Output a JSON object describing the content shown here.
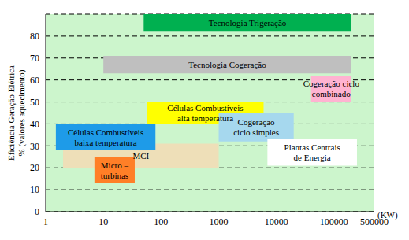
{
  "chart_data": {
    "type": "range",
    "x_label": "(KW)",
    "y_label": "Eficiência Geração Elétrica\n% (valores aquecimento)",
    "log": "x",
    "grid": true,
    "xlim": [
      1,
      500000
    ],
    "xticks": [
      1,
      10,
      100,
      1000,
      10000,
      100000,
      500000
    ],
    "ylim": [
      0,
      90
    ],
    "yticks": [
      0,
      10,
      20,
      30,
      40,
      50,
      60,
      70,
      80
    ],
    "series": [
      {
        "name": "Tecnologia Trigeração",
        "color": "#00b050",
        "x": [
          50,
          200000
        ],
        "y": [
          82,
          90
        ]
      },
      {
        "name": "Tecnologia Cogeração",
        "color": "#bfbfbf",
        "x": [
          10,
          200000
        ],
        "y": [
          63,
          71
        ]
      },
      {
        "name": "Cogeração ciclo\ncombinado",
        "color": "#ffb3d1",
        "x": [
          40000,
          200000
        ],
        "y": [
          50,
          62
        ]
      },
      {
        "name": "MCI",
        "color": "#eedfb8",
        "x": [
          2,
          1000
        ],
        "y": [
          20,
          31
        ]
      },
      {
        "name": "Células Combustíveis\nbaixa temperatura",
        "color": "#1e9be8",
        "x": [
          1.5,
          80
        ],
        "y": [
          28,
          40
        ]
      },
      {
        "name": "Células Combustíveis\nalta temperatura",
        "color": "#ffff00",
        "x": [
          57,
          6000
        ],
        "y": [
          40,
          50
        ]
      },
      {
        "name": "Cogeração\nciclo simples",
        "color": "#a6d8ee",
        "x": [
          1000,
          20000
        ],
        "y": [
          32,
          45
        ]
      },
      {
        "name": "Micro –\nturbinas",
        "color": "#ff7f27",
        "x": [
          7,
          35
        ],
        "y": [
          13,
          25
        ]
      },
      {
        "name": "Plantas Centrais\nde Energia",
        "color": "#ffffff",
        "x": [
          7000,
          250000
        ],
        "y": [
          21,
          33
        ]
      }
    ]
  }
}
